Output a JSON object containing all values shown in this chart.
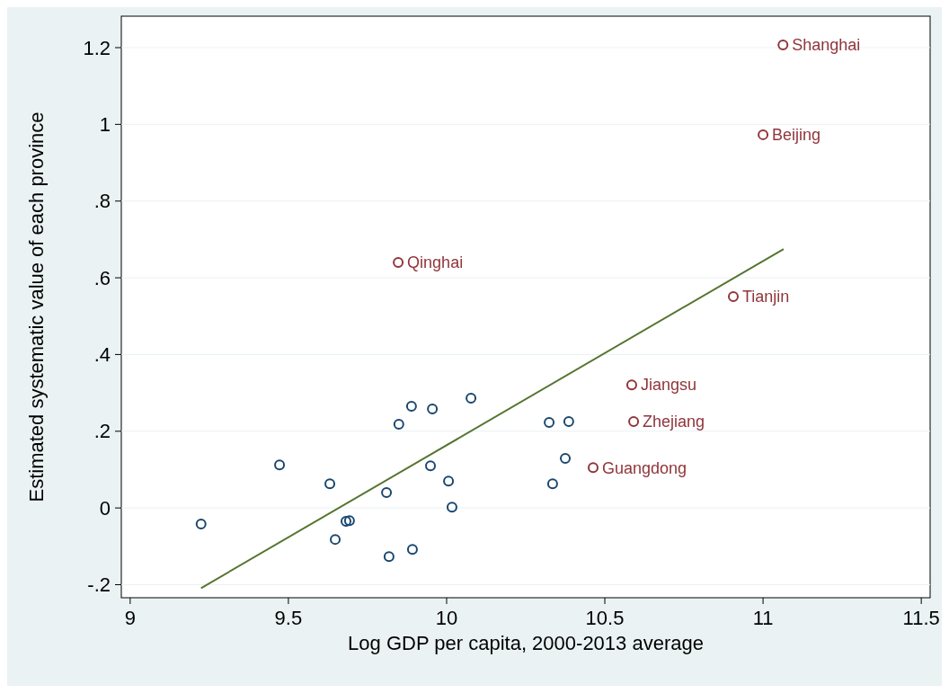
{
  "chart_data": {
    "type": "scatter",
    "xlabel": "Log GDP per capita, 2000-2013 average",
    "ylabel": "Estimated systematic value of each province",
    "xlim": [
      8.972,
      11.528
    ],
    "ylim": [
      -0.234,
      1.282
    ],
    "xticks": [
      9,
      9.5,
      10,
      10.5,
      11,
      11.5
    ],
    "yticks": [
      {
        "value": -0.2,
        "label": "-.2"
      },
      0,
      {
        "value": 0.2,
        "label": ".2"
      },
      {
        "value": 0.4,
        "label": ".4"
      },
      {
        "value": 0.6,
        "label": ".6"
      },
      {
        "value": 0.8,
        "label": ".8"
      },
      1,
      1.2
    ],
    "grid": "y",
    "marker": "circle",
    "series": [
      {
        "color": "#1a476f",
        "x": [
          9.224,
          9.472,
          9.631,
          9.648,
          9.682,
          9.693,
          9.81,
          9.818,
          9.849,
          9.889,
          9.892,
          9.949,
          9.955,
          10.006,
          10.017,
          10.077,
          10.324,
          10.335,
          10.375,
          10.386
        ],
        "values": [
          -0.042,
          0.112,
          0.063,
          -0.082,
          -0.035,
          -0.033,
          0.04,
          -0.127,
          0.218,
          0.265,
          -0.108,
          0.11,
          0.258,
          0.07,
          0.002,
          0.286,
          0.223,
          0.063,
          0.129,
          0.225
        ]
      },
      {
        "color": "#90353b",
        "x": [
          10.463,
          10.585,
          10.591,
          10.906,
          9.847,
          11.0,
          11.063
        ],
        "values": [
          0.105,
          0.321,
          0.225,
          0.551,
          0.64,
          0.973,
          1.207
        ]
      },
      {
        "type": "line",
        "color": "#55752f",
        "marker": "none",
        "x": [
          9.224,
          11.065
        ],
        "values": [
          -0.209,
          0.675
        ]
      }
    ],
    "annotations": [
      {
        "text": "Guangdong",
        "x": 10.463,
        "y": 0.105
      },
      {
        "text": "Jiangsu",
        "x": 10.585,
        "y": 0.321
      },
      {
        "text": "Zhejiang",
        "x": 10.591,
        "y": 0.225
      },
      {
        "text": "Tianjin",
        "x": 10.906,
        "y": 0.551
      },
      {
        "text": "Qinghai",
        "x": 9.847,
        "y": 0.64
      },
      {
        "text": "Beijing",
        "x": 11.0,
        "y": 0.973
      },
      {
        "text": "Shanghai",
        "x": 11.063,
        "y": 1.207
      }
    ]
  }
}
